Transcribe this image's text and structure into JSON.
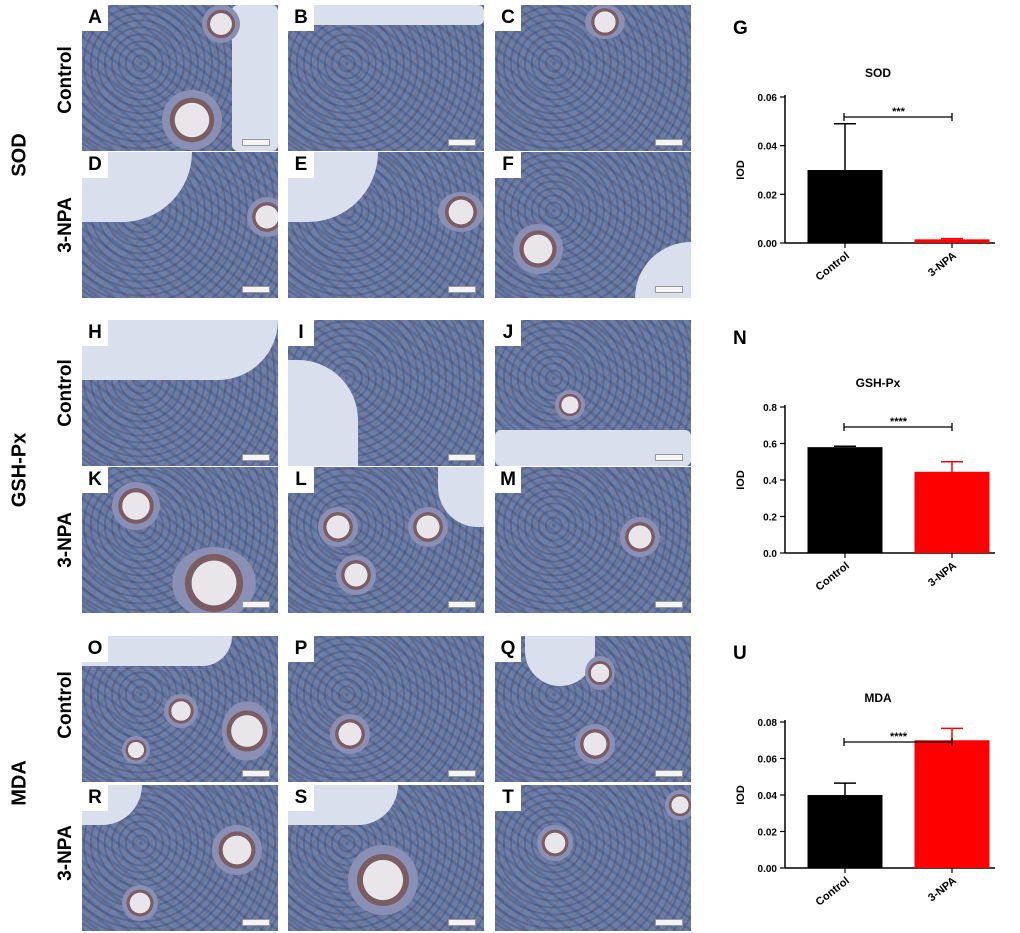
{
  "sections": [
    {
      "label": "SOD",
      "row_labels": [
        "Control",
        "3-NPA"
      ],
      "panels": [
        "A",
        "B",
        "C",
        "D",
        "E",
        "F"
      ],
      "figure_letter": "G"
    },
    {
      "label": "GSH-Px",
      "row_labels": [
        "Control",
        "3-NPA"
      ],
      "panels": [
        "H",
        "I",
        "J",
        "K",
        "L",
        "M"
      ],
      "figure_letter": "N"
    },
    {
      "label": "MDA",
      "row_labels": [
        "Control",
        "3-NPA"
      ],
      "panels": [
        "O",
        "P",
        "Q",
        "R",
        "S",
        "T"
      ],
      "figure_letter": "U"
    }
  ],
  "colors": {
    "control": "#000000",
    "npa": "#ff0000",
    "tissue_blue": "#6d7fa8"
  },
  "chart_data": [
    {
      "type": "bar",
      "title": "SOD",
      "ylabel": "IOD",
      "categories": [
        "Control",
        "3-NPA"
      ],
      "values": [
        0.03,
        0.0015
      ],
      "errors": [
        0.019,
        0.0003
      ],
      "ylim": [
        0,
        0.06
      ],
      "yticks": [
        "0.00",
        "0.02",
        "0.04",
        "0.06"
      ],
      "significance": "***",
      "grid": false
    },
    {
      "type": "bar",
      "title": "GSH-Px",
      "ylabel": "IOD",
      "categories": [
        "Control",
        "3-NPA"
      ],
      "values": [
        0.58,
        0.445
      ],
      "errors": [
        0.005,
        0.055
      ],
      "ylim": [
        0,
        0.8
      ],
      "yticks": [
        "0.0",
        "0.2",
        "0.4",
        "0.6",
        "0.8"
      ],
      "significance": "****",
      "grid": false
    },
    {
      "type": "bar",
      "title": "MDA",
      "ylabel": "IOD",
      "categories": [
        "Control",
        "3-NPA"
      ],
      "values": [
        0.04,
        0.07
      ],
      "errors": [
        0.0065,
        0.0065
      ],
      "ylim": [
        0,
        0.08
      ],
      "yticks": [
        "0.00",
        "0.02",
        "0.04",
        "0.06",
        "0.08"
      ],
      "significance": "****",
      "grid": false
    }
  ]
}
